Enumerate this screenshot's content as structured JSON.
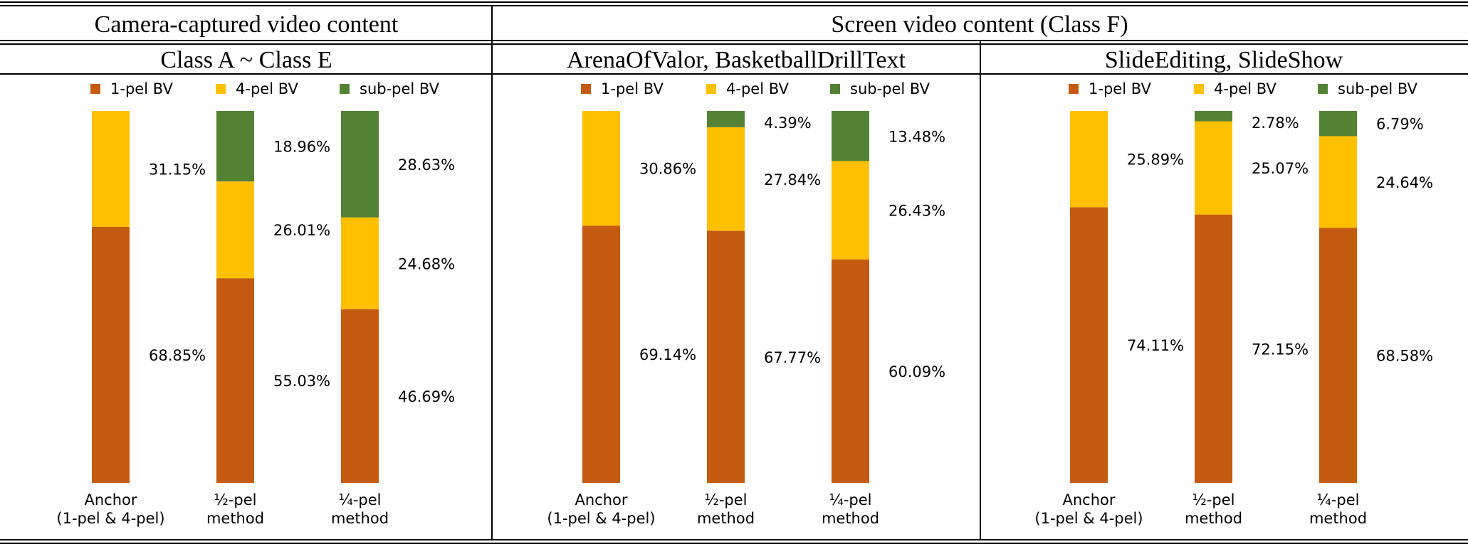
{
  "headers": {
    "camera": "Camera-captured video content",
    "screen": "Screen video content (Class F)"
  },
  "colors": {
    "one_pel": "#C55A11",
    "four_pel": "#FFC000",
    "sub_pel": "#548235"
  },
  "chart_data": [
    {
      "type": "bar",
      "stacked": true,
      "percent_stacked": true,
      "title": "Class A ~ Class E",
      "categories": [
        "Anchor\n(1-pel & 4-pel)",
        "½-pel\nmethod",
        "¼-pel\nmethod"
      ],
      "series": [
        {
          "name": "1-pel BV",
          "values": [
            68.85,
            55.03,
            46.69
          ]
        },
        {
          "name": "4-pel BV",
          "values": [
            31.15,
            26.01,
            24.68
          ]
        },
        {
          "name": "sub-pel BV",
          "values": [
            0,
            18.96,
            28.63
          ]
        }
      ],
      "labels": [
        [
          "68.85%",
          "55.03%",
          "46.69%"
        ],
        [
          "31.15%",
          "26.01%",
          "24.68%"
        ],
        [
          "",
          "18.96%",
          "28.63%"
        ]
      ],
      "ylim": [
        0,
        100
      ],
      "legend": "top"
    },
    {
      "type": "bar",
      "stacked": true,
      "percent_stacked": true,
      "title": "ArenaOfValor, BasketballDrillText",
      "categories": [
        "Anchor\n(1-pel & 4-pel)",
        "½-pel\nmethod",
        "¼-pel\nmethod"
      ],
      "series": [
        {
          "name": "1-pel BV",
          "values": [
            69.14,
            67.77,
            60.09
          ]
        },
        {
          "name": "4-pel BV",
          "values": [
            30.86,
            27.84,
            26.43
          ]
        },
        {
          "name": "sub-pel BV",
          "values": [
            0,
            4.39,
            13.48
          ]
        }
      ],
      "labels": [
        [
          "69.14%",
          "67.77%",
          "60.09%"
        ],
        [
          "30.86%",
          "27.84%",
          "26.43%"
        ],
        [
          "",
          "4.39%",
          "13.48%"
        ]
      ],
      "ylim": [
        0,
        100
      ],
      "legend": "top"
    },
    {
      "type": "bar",
      "stacked": true,
      "percent_stacked": true,
      "title": "SlideEditing, SlideShow",
      "categories": [
        "Anchor\n(1-pel & 4-pel)",
        "½-pel\nmethod",
        "¼-pel\nmethod"
      ],
      "series": [
        {
          "name": "1-pel BV",
          "values": [
            74.11,
            72.15,
            68.58
          ]
        },
        {
          "name": "4-pel BV",
          "values": [
            25.89,
            25.07,
            24.64
          ]
        },
        {
          "name": "sub-pel BV",
          "values": [
            0,
            2.78,
            6.79
          ]
        }
      ],
      "labels": [
        [
          "74.11%",
          "72.15%",
          "68.58%"
        ],
        [
          "25.89%",
          "25.07%",
          "24.64%"
        ],
        [
          "",
          "2.78%",
          "6.79%"
        ]
      ],
      "ylim": [
        0,
        100
      ],
      "legend": "top"
    }
  ]
}
